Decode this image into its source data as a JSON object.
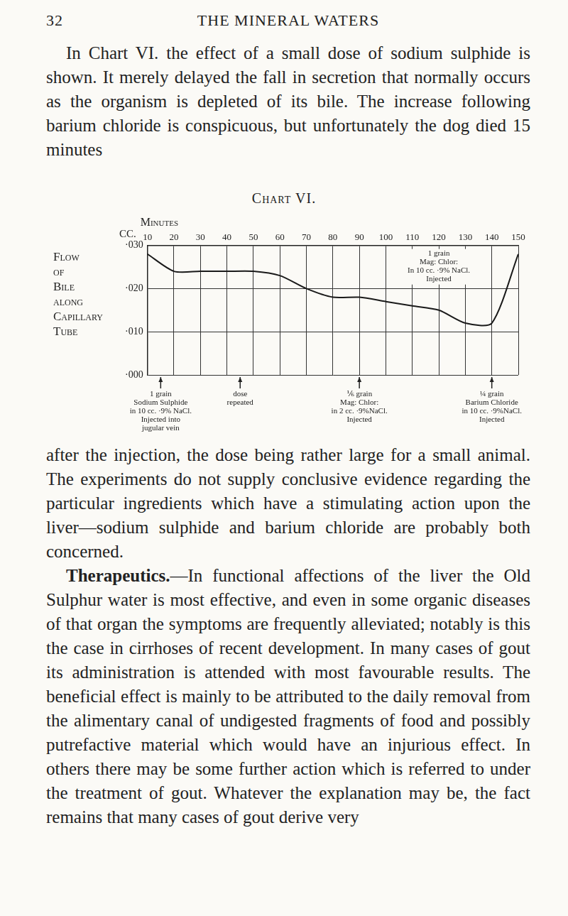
{
  "page": {
    "number": "32",
    "running_head": "THE MINERAL WATERS"
  },
  "paragraphs_before": [
    "In Chart VI. the effect of a small dose of sodium sulphide is shown. It merely delayed the fall in secretion that normally occurs as the organism is depleted of its bile. The increase following barium chloride is conspicuous, but unfortunately the dog died 15 minutes"
  ],
  "chart_data": {
    "type": "line",
    "title": "Chart VI.",
    "x_label": "Minutes",
    "y_label": "Flow of Bile along Capillary Tube",
    "y_units": "CC.",
    "x": [
      10,
      20,
      30,
      40,
      50,
      60,
      70,
      80,
      90,
      100,
      110,
      120,
      130,
      140,
      150
    ],
    "values": [
      0.028,
      0.024,
      0.024,
      0.024,
      0.024,
      0.023,
      0.02,
      0.018,
      0.018,
      0.017,
      0.016,
      0.015,
      0.012,
      0.012,
      0.028
    ],
    "color": "#1a1a1a",
    "xlim": [
      10,
      150
    ],
    "xticks": [
      10,
      20,
      30,
      40,
      50,
      60,
      70,
      80,
      90,
      100,
      110,
      120,
      130,
      140,
      150
    ],
    "ylim": [
      0,
      0.03
    ],
    "yticks": [
      {
        "value": 0.03,
        "label": "·030"
      },
      {
        "value": 0.02,
        "label": "·020"
      },
      {
        "value": 0.01,
        "label": "·010"
      },
      {
        "value": 0,
        "label": "·000"
      }
    ],
    "grid": true,
    "annotations": [
      {
        "x": 15,
        "text": [
          "1 grain",
          "Sodium Sulphide",
          "in 10 cc. ·9% NaCl.",
          "Injected into",
          "jugular vein"
        ]
      },
      {
        "x": 45,
        "text": [
          "dose",
          "repeated"
        ]
      },
      {
        "x": 90,
        "text": [
          "⅙ grain",
          "Mag: Chlor:",
          "in 2 cc. ·9%NaCl.",
          "Injected"
        ]
      },
      {
        "x": 120,
        "y": 0.029,
        "text": [
          "1 grain",
          "Mag: Chlor:",
          "In 10 cc. ·9% NaCl.",
          "Injected"
        ]
      },
      {
        "x": 140,
        "text": [
          "¼ grain",
          "Barium Chloride",
          "in 10 cc. ·9%NaCl.",
          "Injected"
        ]
      }
    ]
  },
  "paragraphs_after": [
    {
      "text": "after the injection, the dose being rather large for a small animal. The experiments do not supply conclusive evidence regarding the particular ingredients which have a stimulating action upon the liver—sodium sulphide and barium chloride are probably both concerned."
    },
    {
      "heading": "Therapeutics.",
      "text": "—In functional affections of the liver the Old Sulphur water is most effective, and even in some organic diseases of that organ the symptoms are frequently alleviated; notably is this the case in cirrhoses of recent development. In many cases of gout its administration is attended with most favourable results. The beneficial effect is mainly to be attributed to the daily removal from the alimentary canal of undigested fragments of food and possibly putrefactive material which would have an injurious effect. In others there may be some further action which is referred to under the treatment of gout. Whatever the explanation may be, the fact remains that many cases of gout derive very"
    }
  ]
}
